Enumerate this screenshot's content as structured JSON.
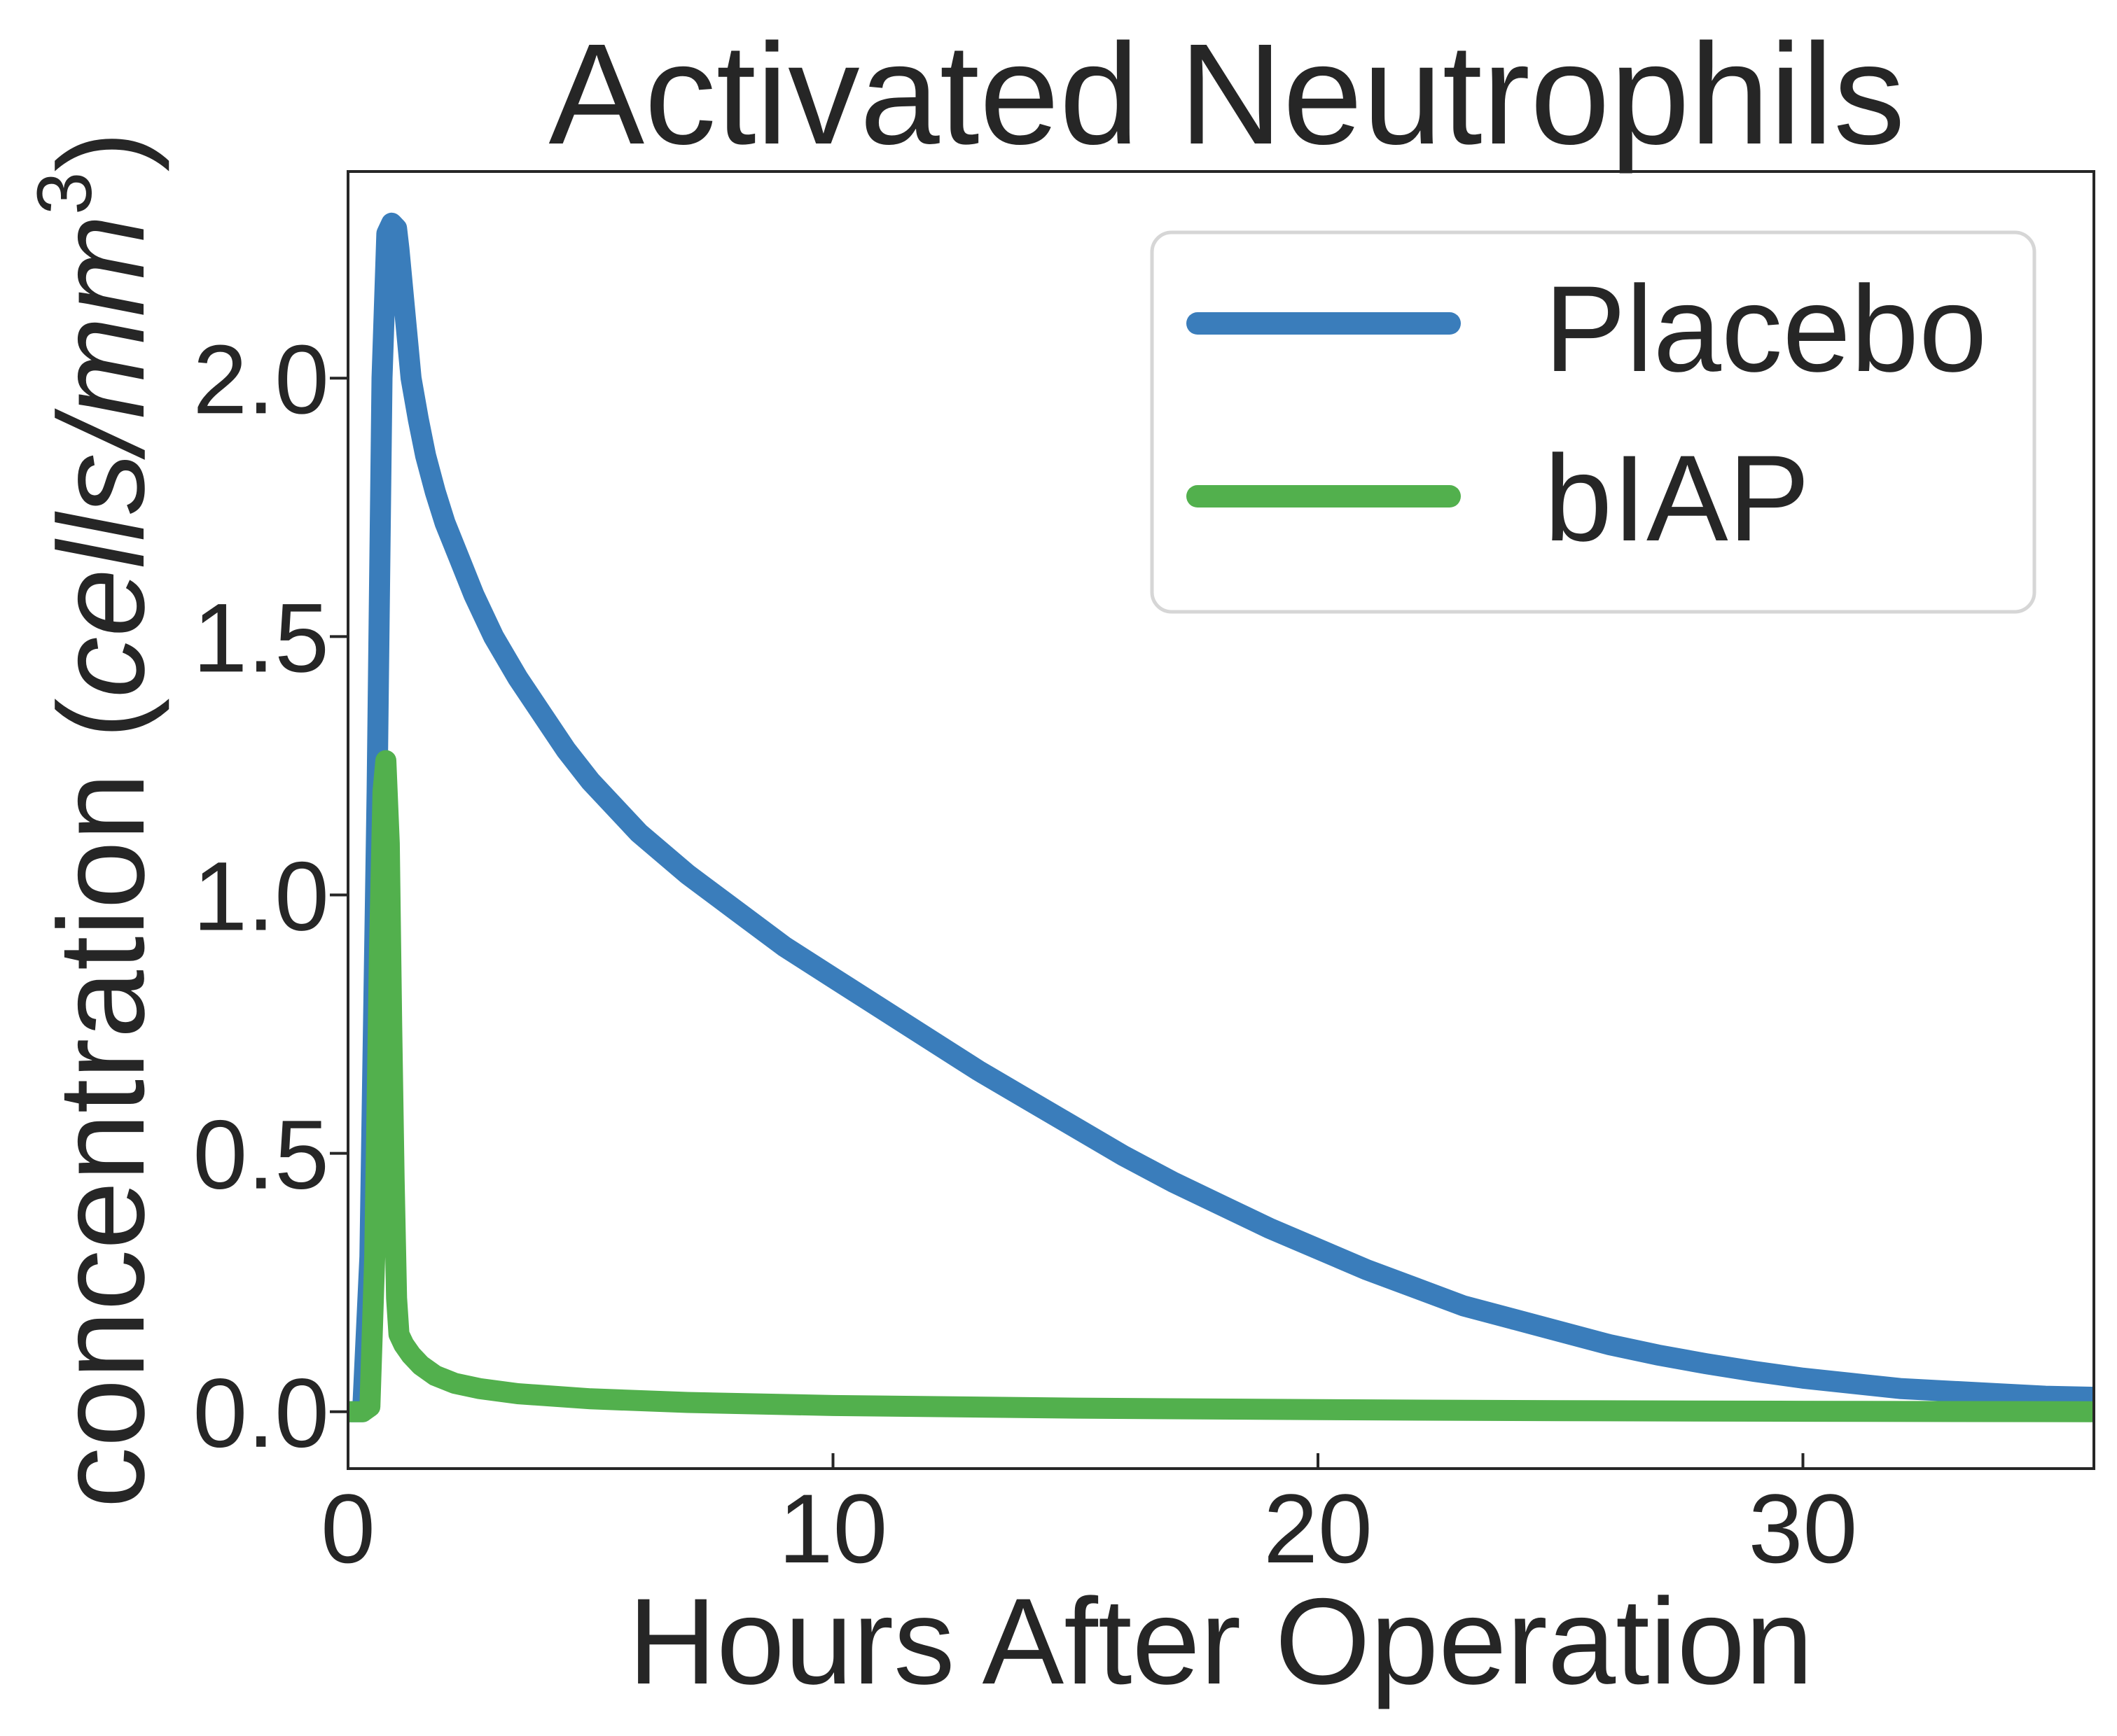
{
  "chart_data": {
    "type": "line",
    "title": "Activated Neutrophils",
    "xlabel": "Hours After Operation",
    "ylabel_main": "concentration (",
    "ylabel_unit": "cells/mm",
    "ylabel_sup": "3",
    "ylabel_close": ")",
    "xlim": [
      0,
      36
    ],
    "ylim": [
      -0.11,
      2.4
    ],
    "xticks": [
      0,
      10,
      20,
      30
    ],
    "xtick_labels": [
      "0",
      "10",
      "20",
      "30"
    ],
    "yticks": [
      0.0,
      0.5,
      1.0,
      1.5,
      2.0
    ],
    "ytick_labels": [
      "0.0",
      "0.5",
      "1.0",
      "1.5",
      "2.0"
    ],
    "grid": false,
    "legend_position": "top-right",
    "series": [
      {
        "name": "Placebo",
        "color": "#3a7dbb",
        "x": [
          0,
          0.3,
          0.45,
          0.6,
          0.7,
          0.8,
          0.9,
          1.0,
          1.05,
          1.15,
          1.3,
          1.45,
          1.6,
          1.8,
          2.0,
          2.3,
          2.6,
          3.0,
          3.5,
          4.0,
          4.5,
          5.0,
          6.0,
          7.0,
          8.0,
          9.0,
          10.0,
          11.0,
          12.0,
          13.0,
          14.0,
          15.0,
          16.0,
          17.0,
          18.0,
          19.0,
          20.0,
          21.0,
          22.0,
          23.0,
          24.0,
          25.0,
          26.0,
          27.0,
          28.0,
          29.0,
          30.0,
          31.0,
          32.0,
          33.0,
          34.0,
          35.0,
          36.0
        ],
        "y": [
          0.0,
          0.0,
          0.3,
          1.2,
          2.0,
          2.28,
          2.3,
          2.29,
          2.25,
          2.15,
          2.0,
          1.92,
          1.85,
          1.78,
          1.72,
          1.65,
          1.58,
          1.5,
          1.42,
          1.35,
          1.28,
          1.22,
          1.12,
          1.04,
          0.97,
          0.9,
          0.84,
          0.78,
          0.72,
          0.66,
          0.605,
          0.55,
          0.495,
          0.445,
          0.4,
          0.355,
          0.315,
          0.275,
          0.24,
          0.205,
          0.18,
          0.155,
          0.13,
          0.11,
          0.093,
          0.078,
          0.065,
          0.055,
          0.045,
          0.04,
          0.035,
          0.03,
          0.028
        ]
      },
      {
        "name": "bIAP",
        "color": "#52b04d",
        "x": [
          0,
          0.3,
          0.45,
          0.55,
          0.65,
          0.72,
          0.78,
          0.85,
          0.9,
          0.95,
          1.0,
          1.05,
          1.15,
          1.3,
          1.5,
          1.8,
          2.2,
          2.7,
          3.5,
          5.0,
          7.0,
          10.0,
          15.0,
          20.0,
          25.0,
          30.0,
          36.0
        ],
        "y": [
          0.0,
          0.0,
          0.01,
          0.3,
          0.9,
          1.2,
          1.26,
          1.1,
          0.75,
          0.45,
          0.22,
          0.15,
          0.13,
          0.11,
          0.09,
          0.07,
          0.055,
          0.045,
          0.035,
          0.025,
          0.018,
          0.012,
          0.007,
          0.004,
          0.002,
          0.001,
          0.0
        ]
      }
    ]
  }
}
